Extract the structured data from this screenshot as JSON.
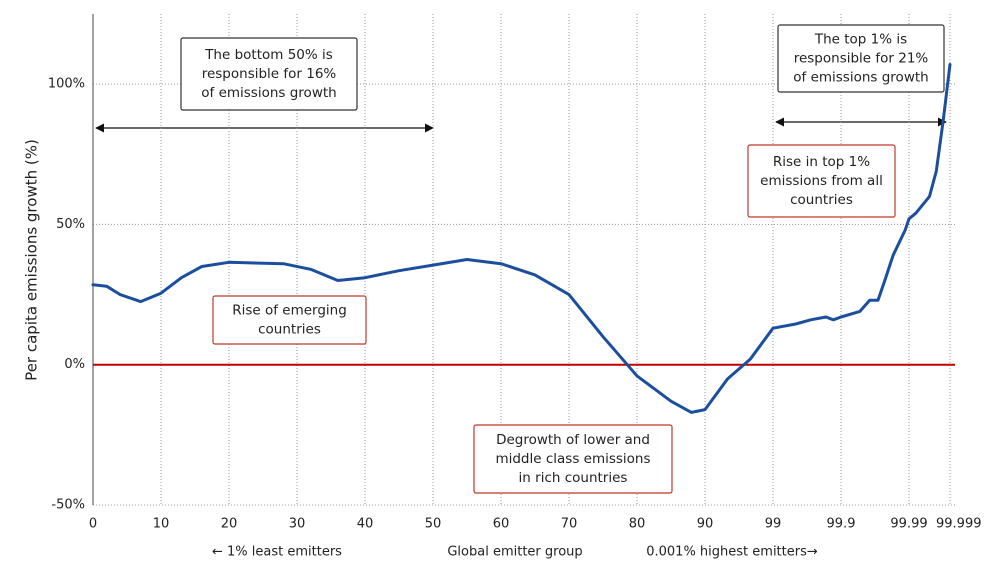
{
  "chart_data": {
    "type": "line",
    "ylabel": "Per capita emissions growth (%)",
    "xlabels": [
      "← 1% least emitters",
      "Global emitter group",
      "0.001% highest emitters→"
    ],
    "x": [
      0,
      2,
      4,
      7,
      10,
      13,
      16,
      20,
      28,
      32,
      36,
      40,
      45,
      50,
      55,
      60,
      65,
      70,
      75,
      80,
      85,
      88,
      90,
      93,
      96,
      99,
      99.3,
      99.5,
      99.7,
      99.8,
      99.9,
      99.925,
      99.938,
      99.949,
      99.958,
      99.969,
      99.985,
      99.99,
      99.9915,
      99.9945,
      99.996,
      99.9975,
      99.999
    ],
    "values": [
      28.5,
      28,
      25,
      22.5,
      25.5,
      31,
      35,
      36.5,
      36,
      34,
      30,
      31,
      33.5,
      35.5,
      37.5,
      36,
      32,
      25,
      10,
      -4,
      -13,
      -17,
      -16,
      -5,
      2,
      13,
      14.5,
      16,
      17,
      16,
      17,
      19,
      23,
      23,
      30,
      39,
      48,
      52,
      54,
      60,
      69,
      87,
      107
    ],
    "color": "#1b4f9e",
    "zero_line_color": "#c00000",
    "xlim": [
      0,
      99.999
    ],
    "xticks": [
      0,
      10,
      20,
      30,
      40,
      50,
      60,
      70,
      80,
      90,
      99,
      99.9,
      99.99,
      99.999
    ],
    "ylim": [
      -50,
      125
    ],
    "yticks": [
      {
        "value": -50,
        "label": "-50%"
      },
      {
        "value": 0,
        "label": "0%"
      },
      {
        "value": 50,
        "label": "50%"
      },
      {
        "value": 100,
        "label": "100%"
      }
    ],
    "grid": true,
    "annotations": [
      {
        "lines": [
          "The bottom 50% is",
          "responsible for 16%",
          "of emissions growth"
        ]
      },
      {
        "lines": [
          "The top 1% is",
          "responsible for 21%",
          "of emissions growth"
        ]
      },
      {
        "lines": [
          "Rise in top 1%",
          "emissions from all",
          "countries"
        ]
      },
      {
        "lines": [
          "Rise of emerging",
          "countries"
        ]
      },
      {
        "lines": [
          "Degrowth of lower and",
          "middle class emissions",
          "in rich countries"
        ]
      }
    ]
  }
}
